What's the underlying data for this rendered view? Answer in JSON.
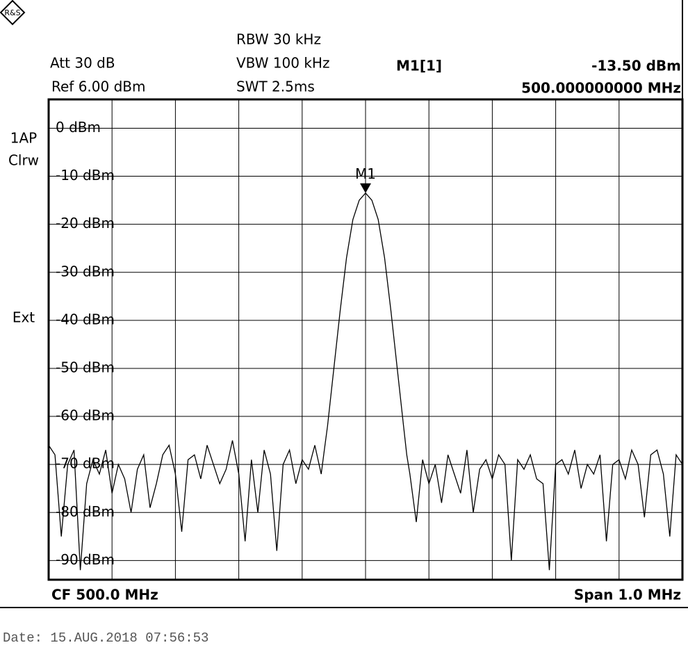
{
  "header": {
    "rbw": "RBW  30 kHz",
    "att": "Att   30 dB",
    "vbw": "VBW  100 kHz",
    "ref": "Ref  6.00 dBm",
    "swt": "SWT  2.5ms",
    "marker_name": "M1[1]",
    "marker_level": "-13.50 dBm",
    "marker_freq": "500.000000000 MHz",
    "trace": "1AP",
    "detector": "Clrw",
    "trigger": "Ext",
    "center": "CF 500.0 MHz",
    "span": "Span 1.0 MHz",
    "date": "Date: 15.AUG.2018  07:56:53"
  },
  "chart_data": {
    "type": "line",
    "color": "#000000",
    "grid": true,
    "xlim": [
      499.5,
      500.5
    ],
    "ylim": [
      -94,
      6
    ],
    "yticks": [
      {
        "value": 0,
        "label": "0 dBm"
      },
      {
        "value": -10,
        "label": "-10 dBm"
      },
      {
        "value": -20,
        "label": "-20 dBm"
      },
      {
        "value": -30,
        "label": "-30 dBm"
      },
      {
        "value": -40,
        "label": "-40 dBm"
      },
      {
        "value": -50,
        "label": "-50 dBm"
      },
      {
        "value": -60,
        "label": "-60 dBm"
      },
      {
        "value": -70,
        "label": "-70 dBm"
      },
      {
        "value": -80,
        "label": "-80 dBm"
      },
      {
        "value": -90,
        "label": "-90 dBm"
      }
    ],
    "x": [
      499.5,
      499.51,
      499.52,
      499.53,
      499.54,
      499.55,
      499.56,
      499.57,
      499.58,
      499.59,
      499.6,
      499.61,
      499.62,
      499.63,
      499.64,
      499.65,
      499.66,
      499.67,
      499.68,
      499.69,
      499.7,
      499.71,
      499.72,
      499.73,
      499.74,
      499.75,
      499.76,
      499.77,
      499.78,
      499.79,
      499.8,
      499.81,
      499.82,
      499.83,
      499.84,
      499.85,
      499.86,
      499.87,
      499.88,
      499.89,
      499.9,
      499.91,
      499.92,
      499.93,
      499.935,
      499.94,
      499.95,
      499.96,
      499.97,
      499.98,
      499.99,
      500.0,
      500.01,
      500.02,
      500.03,
      500.04,
      500.05,
      500.06,
      500.065,
      500.07,
      500.08,
      500.09,
      500.1,
      500.11,
      500.12,
      500.13,
      500.14,
      500.15,
      500.16,
      500.17,
      500.18,
      500.19,
      500.2,
      500.21,
      500.22,
      500.23,
      500.24,
      500.25,
      500.26,
      500.27,
      500.28,
      500.29,
      500.3,
      500.31,
      500.32,
      500.33,
      500.34,
      500.35,
      500.36,
      500.37,
      500.38,
      500.39,
      500.4,
      500.41,
      500.42,
      500.43,
      500.44,
      500.45,
      500.46,
      500.47,
      500.48,
      500.49,
      500.5
    ],
    "values": [
      -66,
      -68,
      -85,
      -70,
      -67,
      -92,
      -74,
      -69,
      -72,
      -67,
      -76,
      -70,
      -73,
      -80,
      -71,
      -68,
      -79,
      -74,
      -68,
      -66,
      -72,
      -84,
      -69,
      -68,
      -73,
      -66,
      -70,
      -74,
      -71,
      -65,
      -72,
      -86,
      -69,
      -80,
      -67,
      -72,
      -88,
      -70,
      -67,
      -74,
      -69,
      -71,
      -66,
      -72,
      -67,
      -62,
      -50,
      -38,
      -27,
      -19,
      -15,
      -13.5,
      -15,
      -19,
      -27,
      -38,
      -50,
      -62,
      -68,
      -72,
      -82,
      -69,
      -74,
      -70,
      -78,
      -68,
      -72,
      -76,
      -67,
      -80,
      -71,
      -69,
      -73,
      -68,
      -70,
      -90,
      -69,
      -71,
      -68,
      -73,
      -74,
      -92,
      -70,
      -69,
      -72,
      -67,
      -75,
      -70,
      -72,
      -68,
      -86,
      -70,
      -69,
      -73,
      -67,
      -70,
      -81,
      -68,
      -67,
      -72,
      -85,
      -68,
      -70
    ],
    "marker": {
      "label": "M1",
      "x": 500.0,
      "y": -13.5
    }
  }
}
